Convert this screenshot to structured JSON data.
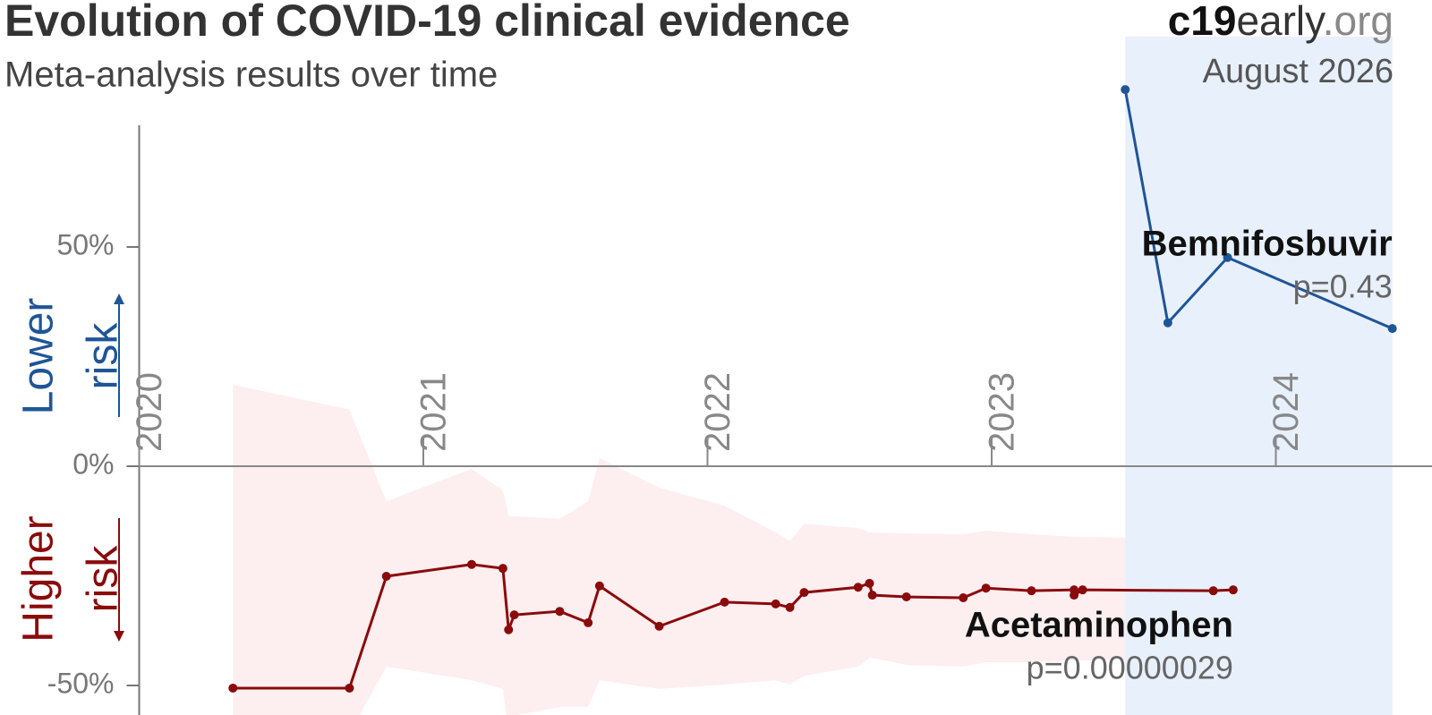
{
  "chart_data": {
    "type": "line",
    "title": "Evolution of COVID-19 clinical evidence",
    "subtitle": "Meta-analysis results over time",
    "brand": {
      "bold": "c19",
      "middle": "early",
      "end": ".org"
    },
    "date": "August 2026",
    "y_label_upper": {
      "lines": [
        "Lower",
        "risk"
      ],
      "color": "#1f5596"
    },
    "y_label_lower": {
      "lines": [
        "Higher",
        "risk"
      ],
      "color": "#8a0b0b"
    },
    "xlim": [
      2020,
      2024.45
    ],
    "xticks": [
      2020,
      2021,
      2022,
      2023,
      2024
    ],
    "ylim": [
      -56,
      86
    ],
    "yticks": [
      {
        "value": 50,
        "label": "50%"
      },
      {
        "value": 0,
        "label": "0%"
      },
      {
        "value": -50,
        "label": "-50%"
      }
    ],
    "series": [
      {
        "name": "Acetaminophen",
        "p_label": "p=0.00000029",
        "color": "#8a0b0b",
        "band_color": "#fdeef0",
        "x": [
          2020.33,
          2020.74,
          2020.87,
          2021.17,
          2021.28,
          2021.3,
          2021.32,
          2021.48,
          2021.58,
          2021.62,
          2021.83,
          2022.06,
          2022.24,
          2022.29,
          2022.34,
          2022.53,
          2022.57,
          2022.58,
          2022.7,
          2022.9,
          2022.98,
          2023.14,
          2023.29,
          2023.29,
          2023.32,
          2023.78,
          2023.85
        ],
        "values": [
          -50.6,
          -50.6,
          -25.1,
          -22.4,
          -23.3,
          -37.3,
          -33.9,
          -33.1,
          -35.7,
          -27.3,
          -36.5,
          -31.0,
          -31.4,
          -32.2,
          -28.8,
          -27.6,
          -26.7,
          -29.4,
          -29.8,
          -30.0,
          -27.8,
          -28.4,
          -28.2,
          -29.4,
          -28.2,
          -28.4,
          -28.2
        ],
        "ci_upper": [
          18.6,
          12.9,
          -8.0,
          -0.6,
          -5.5,
          -11.4,
          -11.4,
          -12.0,
          -8.0,
          1.8,
          -4.9,
          -9.0,
          -15.1,
          -17.1,
          -13.1,
          -14.1,
          -15.1,
          -15.1,
          -15.3,
          -15.5,
          -14.7,
          -15.5,
          -16.1,
          -16.1,
          -16.1,
          -16.7,
          -16.7
        ],
        "ci_lower": [
          -61,
          -61,
          -45.7,
          -48.8,
          -50.8,
          -61,
          -56.9,
          -54.9,
          -54.9,
          -48.8,
          -50.8,
          -49.8,
          -48.8,
          -49.8,
          -47.8,
          -45.7,
          -43.7,
          -43.7,
          -45.3,
          -45.7,
          -44.7,
          -44.7,
          -44.3,
          -44.3,
          -44.3,
          -43.7,
          -43.7
        ]
      },
      {
        "name": "Bemnifosbuvir",
        "p_label": "p=0.43",
        "color": "#1f5596",
        "band_color": "#e8f0fc",
        "x": [
          2023.47,
          2023.62,
          2023.83,
          2024.41
        ],
        "values": [
          85.9,
          32.7,
          47.6,
          31.4
        ],
        "ci_upper": [
          98,
          98,
          98,
          98
        ],
        "ci_lower": [
          -57,
          -57,
          -57,
          -57
        ]
      }
    ]
  }
}
